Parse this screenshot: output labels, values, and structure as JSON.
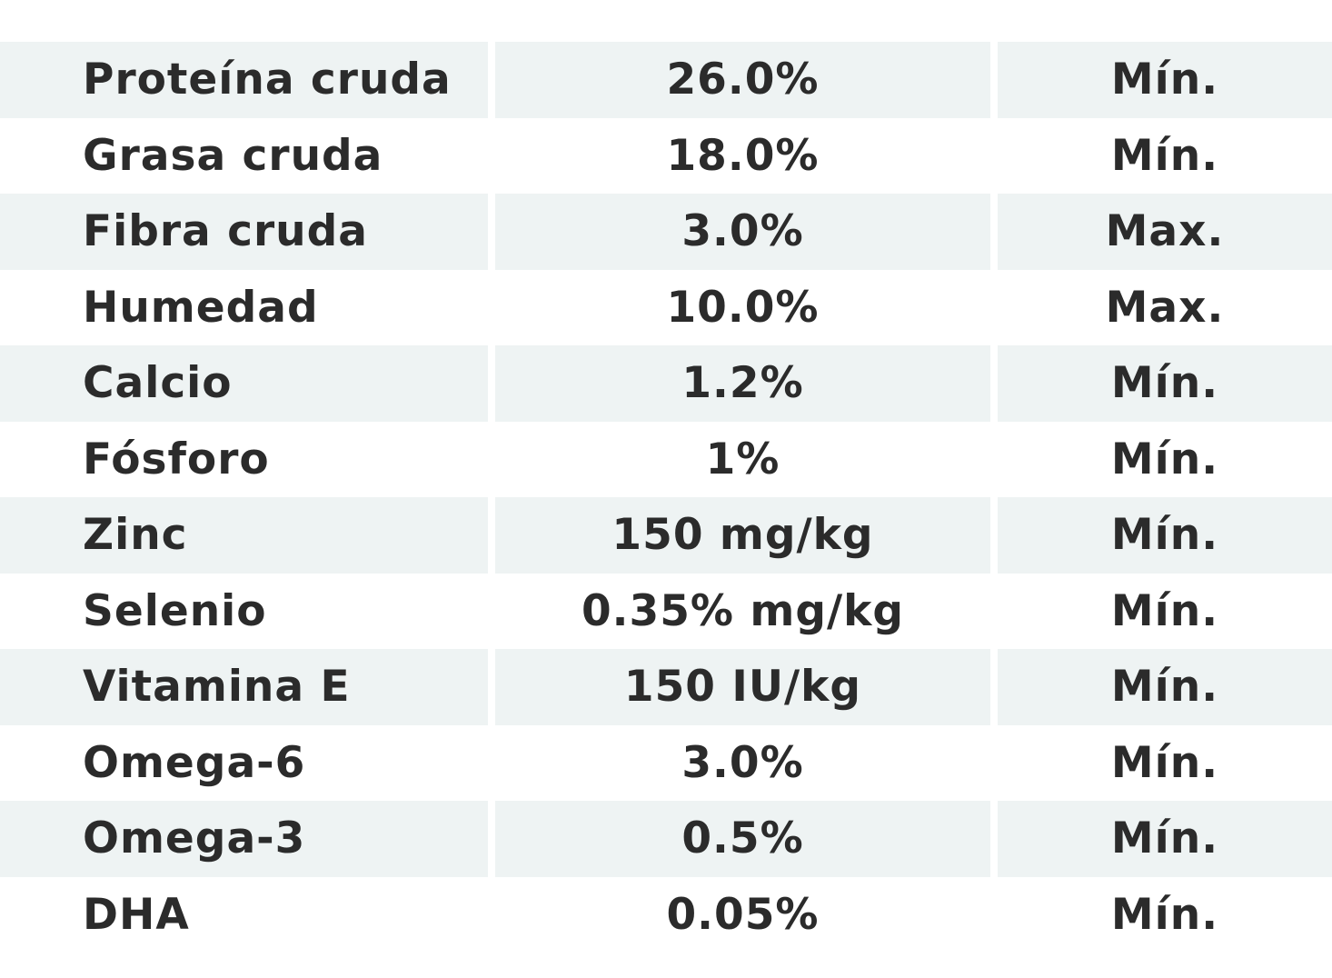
{
  "table": {
    "rows": [
      {
        "nutrient": "Proteína cruda",
        "value": "26.0%",
        "limit": "Mín."
      },
      {
        "nutrient": "Grasa cruda",
        "value": "18.0%",
        "limit": "Mín."
      },
      {
        "nutrient": "Fibra cruda",
        "value": "3.0%",
        "limit": "Max."
      },
      {
        "nutrient": "Humedad",
        "value": "10.0%",
        "limit": "Max."
      },
      {
        "nutrient": "Calcio",
        "value": "1.2%",
        "limit": "Mín."
      },
      {
        "nutrient": "Fósforo",
        "value": "1%",
        "limit": "Mín."
      },
      {
        "nutrient": "Zinc",
        "value": "150 mg/kg",
        "limit": "Mín."
      },
      {
        "nutrient": "Selenio",
        "value": "0.35% mg/kg",
        "limit": "Mín."
      },
      {
        "nutrient": "Vitamina E",
        "value": "150 IU/kg",
        "limit": "Mín."
      },
      {
        "nutrient": "Omega-6",
        "value": "3.0%",
        "limit": "Mín."
      },
      {
        "nutrient": "Omega-3",
        "value": "0.5%",
        "limit": "Mín."
      },
      {
        "nutrient": "DHA",
        "value": "0.05%",
        "limit": "Mín."
      }
    ]
  },
  "colors": {
    "shaded_row": "#eef3f3",
    "text": "#2b2b2b"
  }
}
